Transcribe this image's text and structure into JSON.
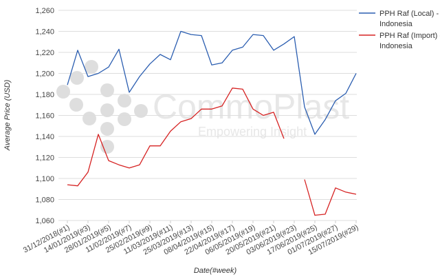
{
  "chart_data": {
    "type": "line",
    "title": "",
    "xlabel": "Date(#week)",
    "ylabel": "Average Price (USD)",
    "ylim": [
      1060,
      1260
    ],
    "yticks": [
      1060,
      1080,
      1100,
      1120,
      1140,
      1160,
      1180,
      1200,
      1220,
      1240,
      1260
    ],
    "ytick_labels": [
      "1,060",
      "1,080",
      "1,100",
      "1,120",
      "1,140",
      "1,160",
      "1,180",
      "1,200",
      "1,220",
      "1,240",
      "1,260"
    ],
    "grid": true,
    "legend_position": "right",
    "x": [
      1,
      2,
      3,
      4,
      5,
      6,
      7,
      8,
      9,
      10,
      11,
      12,
      13,
      14,
      15,
      16,
      17,
      18,
      19,
      20,
      21,
      22,
      23,
      24,
      25,
      26,
      27,
      28,
      29
    ],
    "xtick_labels": [
      {
        "x": 1,
        "label": "31/12/2018(#1)"
      },
      {
        "x": 3,
        "label": "14/01/2019(#3)"
      },
      {
        "x": 5,
        "label": "28/01/2019(#5)"
      },
      {
        "x": 7,
        "label": "11/02/2019(#7)"
      },
      {
        "x": 9,
        "label": "25/02/2019(#9)"
      },
      {
        "x": 11,
        "label": "11/03/2019(#11)"
      },
      {
        "x": 13,
        "label": "25/03/2019(#13)"
      },
      {
        "x": 15,
        "label": "08/04/2019(#15)"
      },
      {
        "x": 17,
        "label": "22/04/2019(#17)"
      },
      {
        "x": 19,
        "label": "06/05/2019(#19)"
      },
      {
        "x": 21,
        "label": "20/05/2019(#21)"
      },
      {
        "x": 23,
        "label": "03/06/2019(#23)"
      },
      {
        "x": 25,
        "label": "17/06/2019(#25)"
      },
      {
        "x": 27,
        "label": "01/07/2019(#27)"
      },
      {
        "x": 29,
        "label": "15/07/2019(#29)"
      }
    ],
    "series": [
      {
        "name": "PPH Raf (Local) - Indonesia",
        "color": "#2a5db0",
        "values": [
          1189,
          1222,
          1197,
          1200,
          1206,
          1223,
          1182,
          1197,
          1209,
          1218,
          1213,
          1240,
          1237,
          1236,
          1208,
          1210,
          1222,
          1225,
          1237,
          1236,
          1222,
          1228,
          1235,
          1168,
          1142,
          1156,
          1174,
          1181,
          1200
        ]
      },
      {
        "name": "PPH Raf (Import) - Indonesia",
        "color": "#d62222",
        "values": [
          1094,
          1093,
          1106,
          1142,
          1117,
          1113,
          1110,
          1113,
          1131,
          1131,
          1145,
          1154,
          1157,
          1166,
          1166,
          1169,
          1186,
          1185,
          1166,
          1160,
          1163,
          1138,
          null,
          1099,
          1065,
          1066,
          1091,
          1087,
          1085
        ]
      }
    ]
  },
  "legend": {
    "local_line1": "PPH Raf (Local) -",
    "local_line2": "Indonesia",
    "import_line1": "PPH Raf (Import) -",
    "import_line2": "Indonesia"
  },
  "watermark": {
    "brand": "CommoPlast",
    "tagline": "Empowering Insight",
    "icon": "dot-cluster-logo-icon"
  }
}
